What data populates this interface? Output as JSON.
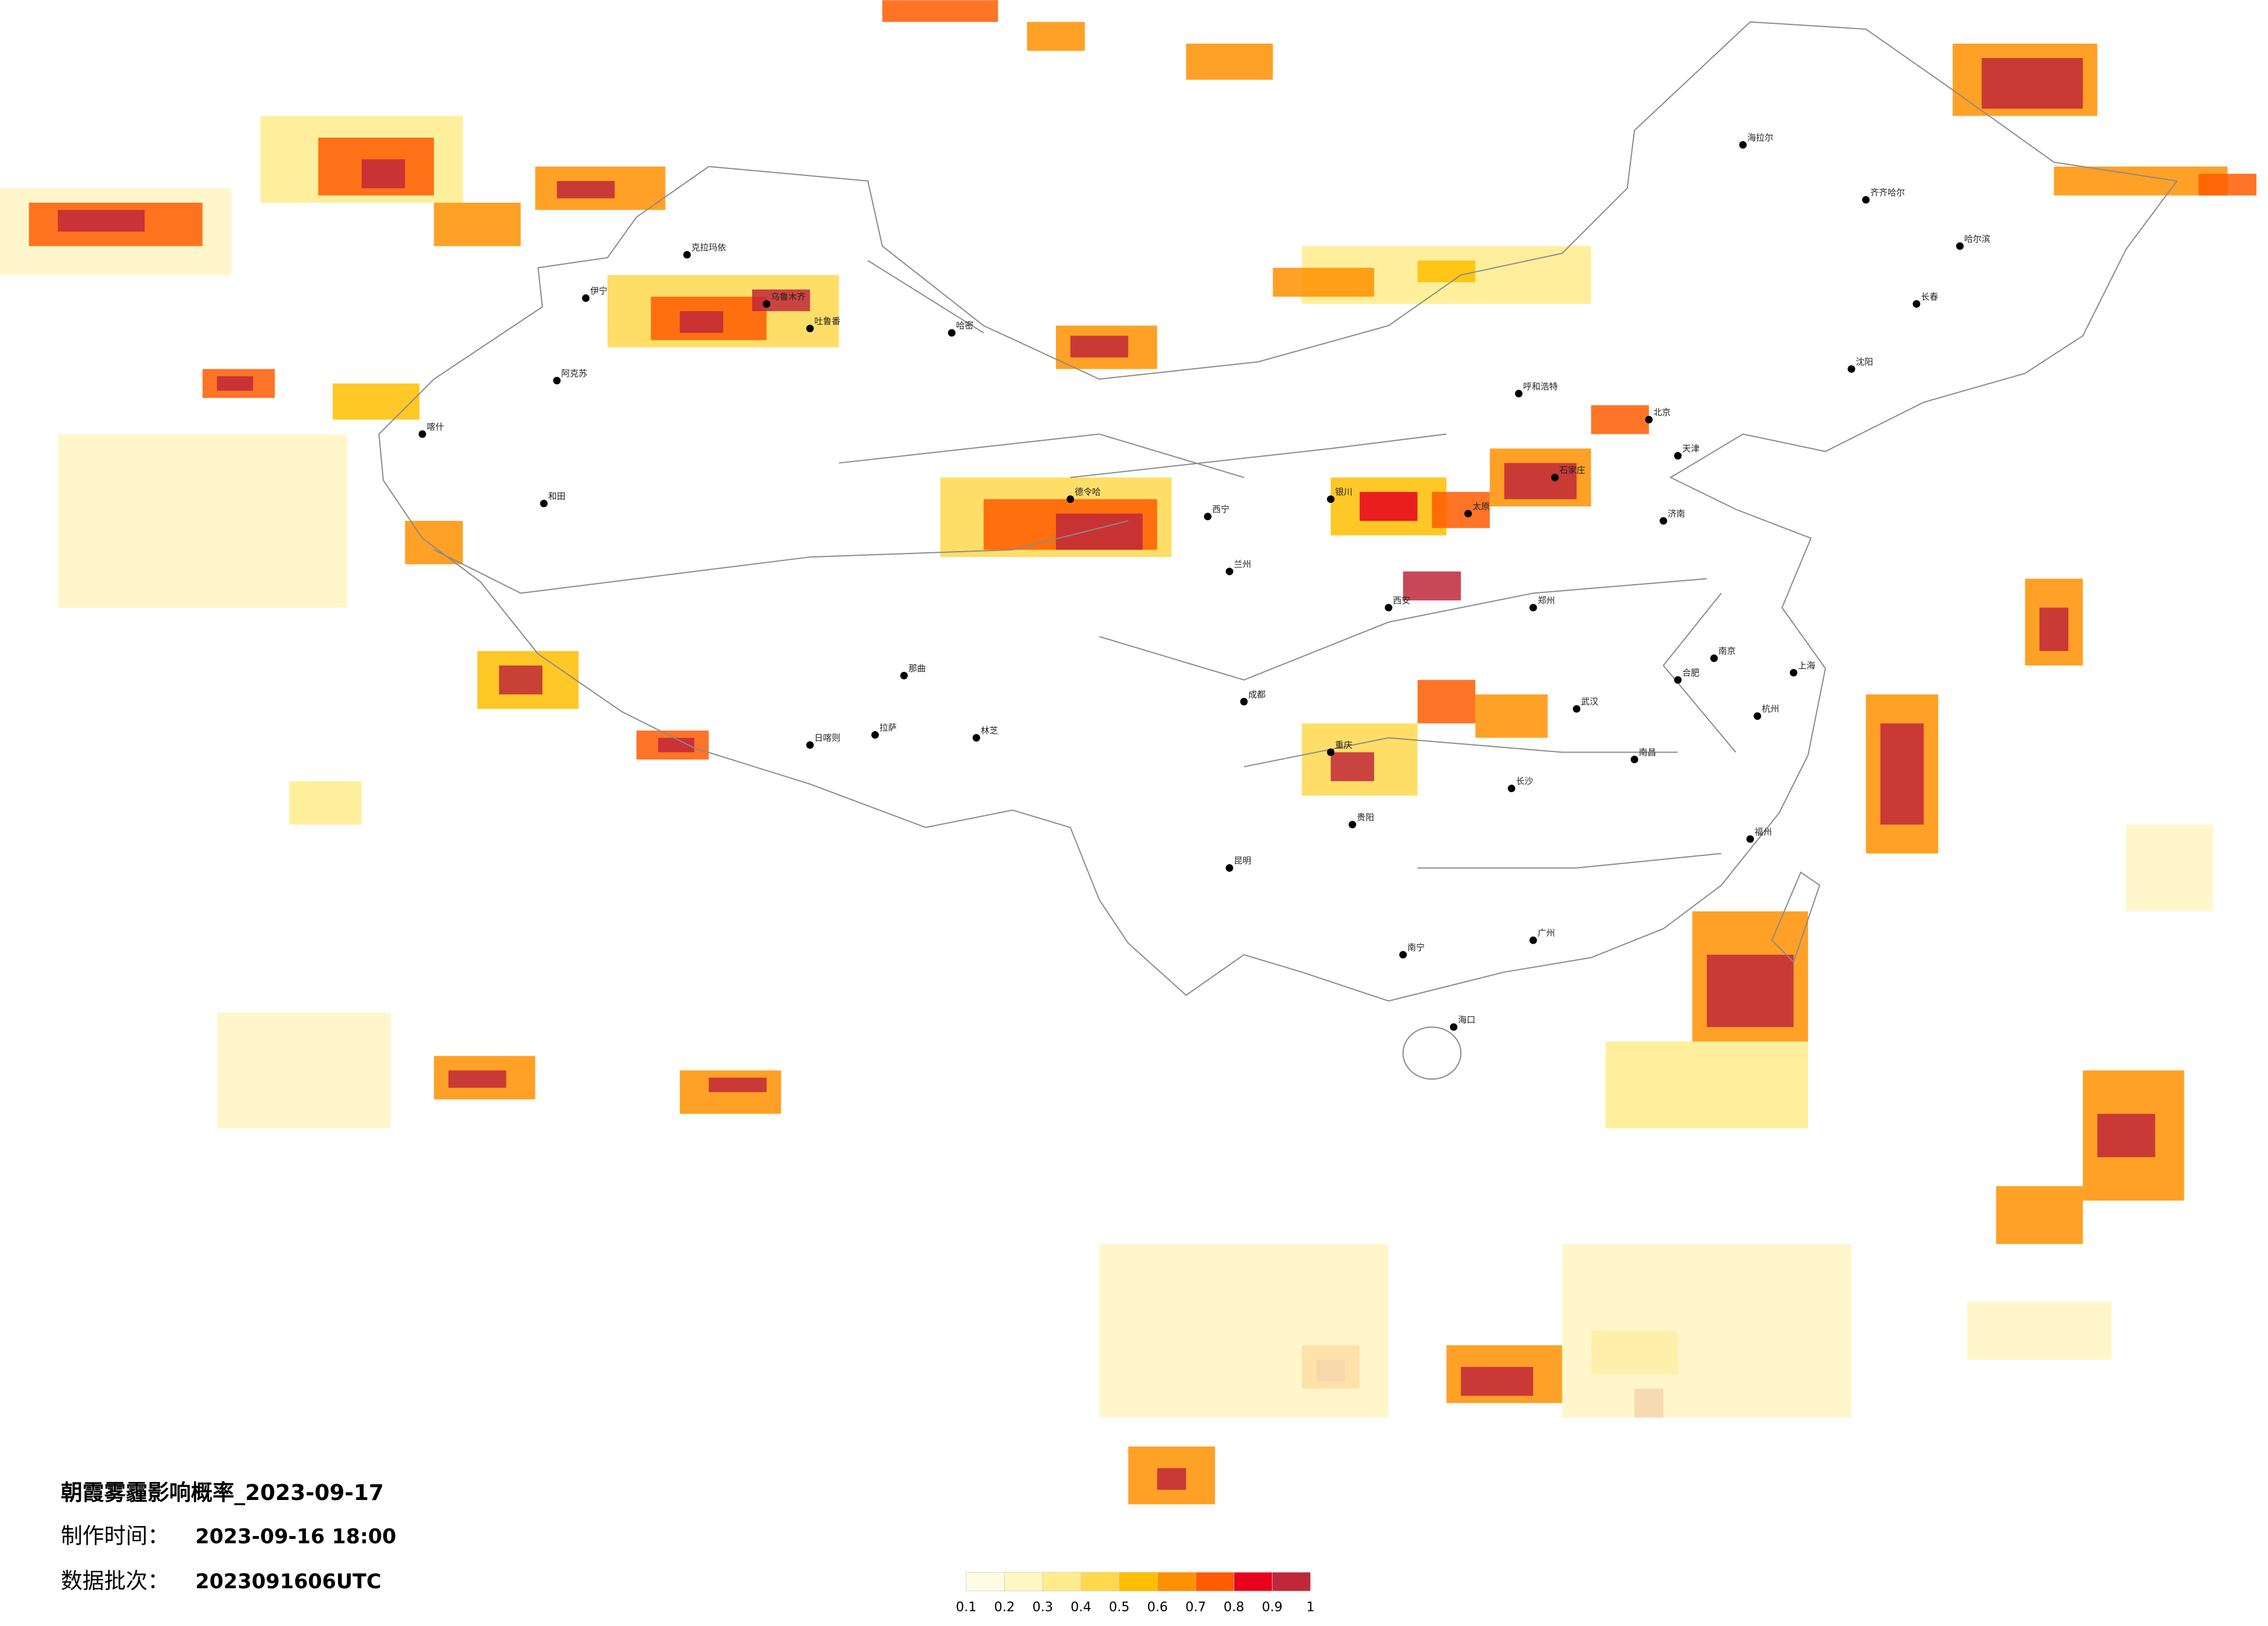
{
  "title": "朝霞雾霾影响概率_2023-09-17",
  "info": [
    {
      "label": "制作时间：",
      "value": "2023-09-16 18:00"
    },
    {
      "label": "数据批次：",
      "value": "2023091606UTC"
    }
  ],
  "legend": {
    "ticks": [
      0.1,
      0.2,
      0.3,
      0.4,
      0.5,
      0.6,
      0.7,
      0.8,
      0.9,
      1
    ],
    "colors": [
      "#fffce6",
      "#fff6c2",
      "#ffec8c",
      "#ffd84d",
      "#ffbe00",
      "#ff9000",
      "#ff5c00",
      "#e8001e",
      "#c0283a"
    ]
  },
  "cities": [
    "伊宁",
    "克拉玛依",
    "乌鲁木齐",
    "吐鲁番",
    "哈密",
    "阿克苏",
    "喀什",
    "和田",
    "德令哈",
    "拉萨",
    "日喀则",
    "那曲",
    "林芝",
    "西宁",
    "兰州",
    "银川",
    "呼和浩特",
    "北京",
    "天津",
    "石家庄",
    "太原",
    "济南",
    "郑州",
    "西安",
    "武汉",
    "长沙",
    "南京",
    "上海",
    "杭州",
    "福州",
    "广州",
    "南宁",
    "昆明",
    "贵阳",
    "成都",
    "重庆",
    "哈尔滨",
    "长春",
    "沈阳",
    "海口",
    "南昌",
    "合肥",
    "海拉尔",
    "齐齐哈尔"
  ]
}
